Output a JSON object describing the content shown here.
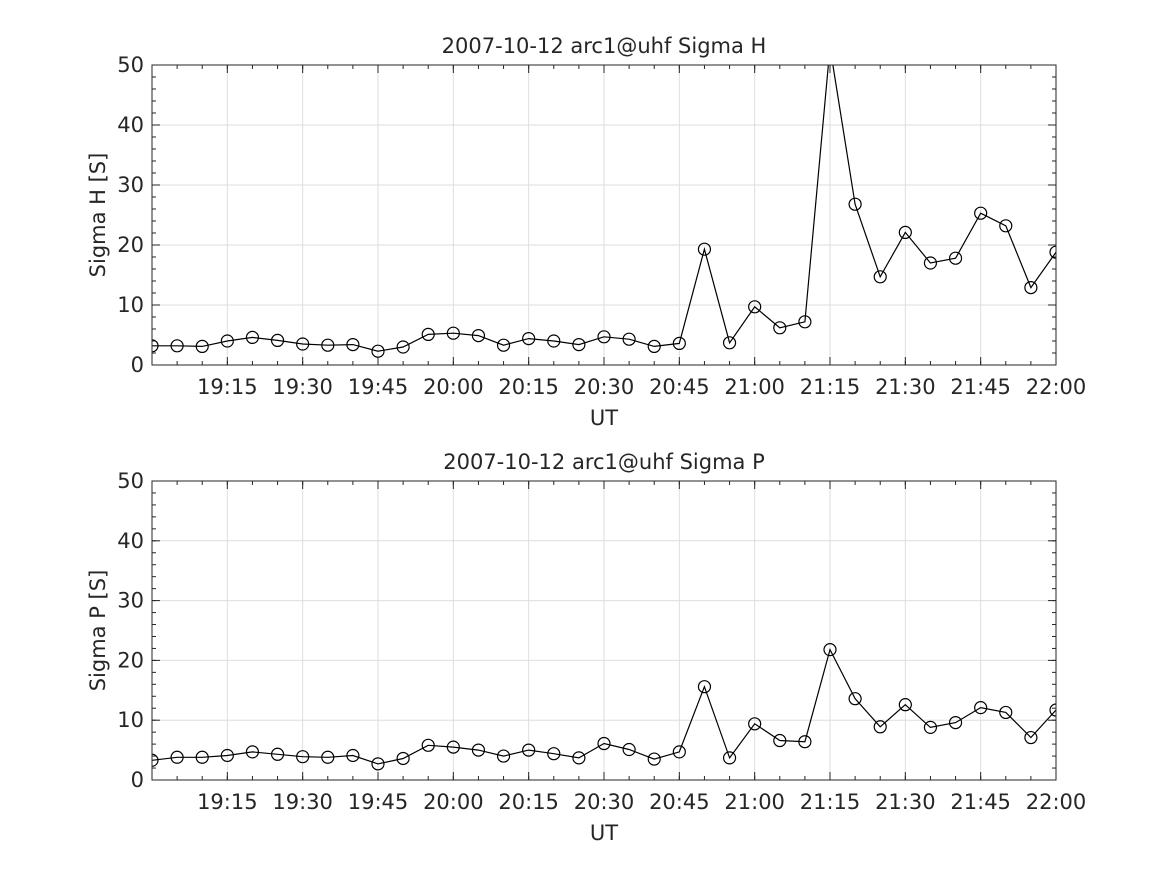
{
  "chart_data": [
    {
      "type": "line",
      "title": "2007-10-12  arc1@uhf Sigma H",
      "xlabel": "UT",
      "ylabel": "Sigma H [S]",
      "xlim": [
        "19:00",
        "22:00"
      ],
      "ylim": [
        0,
        50
      ],
      "yticks": [
        "0",
        "10",
        "20",
        "30",
        "40",
        "50"
      ],
      "xticks": [
        "19:15",
        "19:30",
        "19:45",
        "20:00",
        "20:15",
        "20:30",
        "20:45",
        "21:00",
        "21:15",
        "21:30",
        "21:45",
        "22:00"
      ],
      "grid": true,
      "marker": "circle",
      "series": [
        {
          "x": [
            "19:00",
            "19:05",
            "19:10",
            "19:15",
            "19:20",
            "19:25",
            "19:30",
            "19:35",
            "19:40",
            "19:45",
            "19:50",
            "19:55",
            "20:00",
            "20:05",
            "20:10",
            "20:15",
            "20:20",
            "20:25",
            "20:30",
            "20:35",
            "20:40",
            "20:45",
            "20:50",
            "20:55",
            "21:00",
            "21:05",
            "21:10",
            "21:15",
            "21:20",
            "21:25",
            "21:30",
            "21:35",
            "21:40",
            "21:45",
            "21:50",
            "21:55",
            "22:00"
          ],
          "values": [
            3.2,
            3.2,
            3.1,
            4.0,
            4.6,
            4.1,
            3.5,
            3.3,
            3.4,
            2.3,
            3.0,
            5.1,
            5.3,
            4.9,
            3.3,
            4.4,
            4.0,
            3.4,
            4.7,
            4.3,
            3.1,
            3.6,
            19.3,
            3.7,
            9.7,
            6.2,
            7.2,
            53.0,
            26.8,
            14.7,
            22.1,
            17.0,
            17.8,
            25.3,
            23.2,
            12.9,
            18.8
          ]
        }
      ]
    },
    {
      "type": "line",
      "title": "2007-10-12  arc1@uhf Sigma P",
      "xlabel": "UT",
      "ylabel": "Sigma P [S]",
      "xlim": [
        "19:00",
        "22:00"
      ],
      "ylim": [
        0,
        50
      ],
      "yticks": [
        "0",
        "10",
        "20",
        "30",
        "40",
        "50"
      ],
      "xticks": [
        "19:15",
        "19:30",
        "19:45",
        "20:00",
        "20:15",
        "20:30",
        "20:45",
        "21:00",
        "21:15",
        "21:30",
        "21:45",
        "22:00"
      ],
      "grid": true,
      "marker": "circle",
      "series": [
        {
          "x": [
            "19:00",
            "19:05",
            "19:10",
            "19:15",
            "19:20",
            "19:25",
            "19:30",
            "19:35",
            "19:40",
            "19:45",
            "19:50",
            "19:55",
            "20:00",
            "20:05",
            "20:10",
            "20:15",
            "20:20",
            "20:25",
            "20:30",
            "20:35",
            "20:40",
            "20:45",
            "20:50",
            "20:55",
            "21:00",
            "21:05",
            "21:10",
            "21:15",
            "21:20",
            "21:25",
            "21:30",
            "21:35",
            "21:40",
            "21:45",
            "21:50",
            "21:55",
            "22:00"
          ],
          "values": [
            3.3,
            3.8,
            3.8,
            4.1,
            4.7,
            4.3,
            3.9,
            3.8,
            4.1,
            2.7,
            3.6,
            5.8,
            5.5,
            5.0,
            4.0,
            5.0,
            4.4,
            3.7,
            6.1,
            5.1,
            3.5,
            4.7,
            15.6,
            3.7,
            9.4,
            6.6,
            6.4,
            21.8,
            13.6,
            8.9,
            12.6,
            8.8,
            9.6,
            12.1,
            11.3,
            7.1,
            11.7
          ]
        }
      ]
    }
  ]
}
